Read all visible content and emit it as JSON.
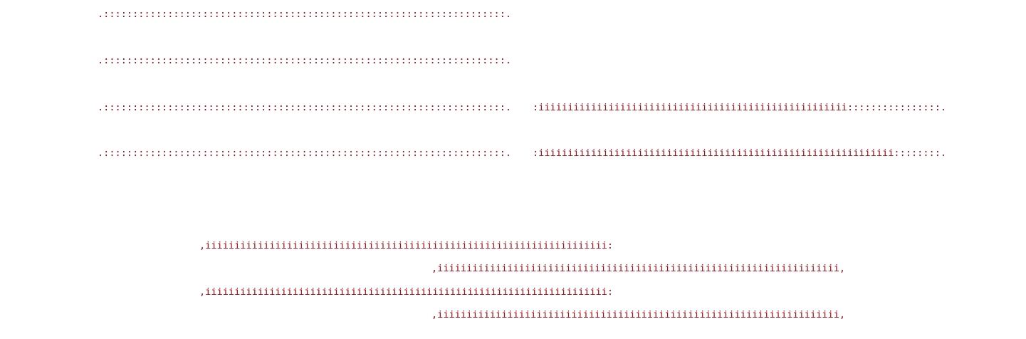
{
  "ascii_art": {
    "top": [
      ".:::::::::::::::::::::::::::::::::::::::::::::::::::::::::::::::::::::.",
      ".:::::::::::::::::::::::::::::::::::::::::::::::::::::::::::::::::::::.",
      ".:::::::::::::::::::::::::::::::::::::::::::::::::::::::::::::::::::::.",
      ".:::::::::::::::::::::::::::::::::::::::::::::::::::::::::::::::::::::."
    ],
    "top_right": [
      ":iiiiiiiiiiiiiiiiiiiiiiiiiiiiiiiiiiiiiiiiiiiiiiiiiiiii::::::::::::::::.",
      ":iiiiiiiiiiiiiiiiiiiiiiiiiiiiiiiiiiiiiiiiiiiiiiiiiiiiiiiiiiiii::::::::."
    ],
    "bottom": [
      ",iiiiiiiiiiiiiiiiiiiiiiiiiiiiiiiiiiiiiiiiiiiiiiiiiiiiiiiiiiiiiiiiiiiii:",
      ",iiiiiiiiiiiiiiiiiiiiiiiiiiiiiiiiiiiiiiiiiiiiiiiiiiiiiiiiiiiiiiiiiiiii,",
      ",iiiiiiiiiiiiiiiiiiiiiiiiiiiiiiiiiiiiiiiiiiiiiiiiiiiiiiiiiiiiiiiiiiiii:",
      ",iiiiiiiiiiiiiiiiiiiiiiiiiiiiiiiiiiiiiiiiiiiiiiiiiiiiiiiiiiiiiiiiiiiii,"
    ]
  },
  "colors": {
    "text": "#a0101a",
    "background": "#ffffff"
  }
}
